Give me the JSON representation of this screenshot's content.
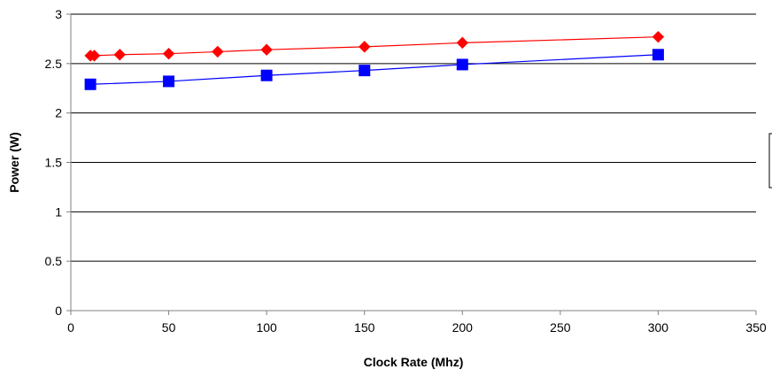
{
  "chart_data": {
    "type": "line",
    "title": "",
    "xlabel": "Clock Rate (Mhz)",
    "ylabel": "Power (W)",
    "xlim": [
      0,
      350
    ],
    "ylim": [
      0,
      3
    ],
    "xticks": [
      0,
      50,
      100,
      150,
      200,
      250,
      300,
      350
    ],
    "yticks": [
      0,
      0.5,
      1,
      1.5,
      2,
      2.5,
      3
    ],
    "xtick_labels": [
      "0",
      "50",
      "100",
      "150",
      "200",
      "250",
      "300",
      "350"
    ],
    "ytick_labels": [
      "0",
      "0.5",
      "1",
      "1.5",
      "2",
      "2.5",
      "3"
    ],
    "grid": "horizontal",
    "legend_position": "right",
    "series": [
      {
        "color": "#ff0000",
        "marker": "diamond",
        "x": [
          10,
          12,
          25,
          50,
          75,
          100,
          150,
          200,
          300
        ],
        "y": [
          2.58,
          2.58,
          2.59,
          2.6,
          2.62,
          2.64,
          2.67,
          2.71,
          2.77
        ]
      },
      {
        "color": "#0000ff",
        "marker": "square",
        "x": [
          10,
          50,
          100,
          150,
          200,
          300
        ],
        "y": [
          2.29,
          2.32,
          2.38,
          2.43,
          2.49,
          2.59
        ]
      }
    ]
  }
}
